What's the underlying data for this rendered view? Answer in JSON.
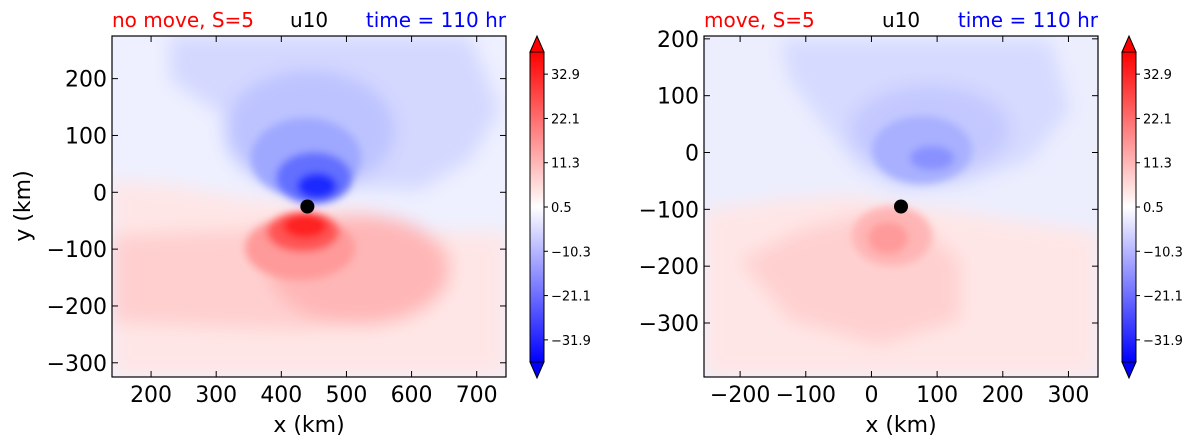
{
  "chart_data": [
    {
      "type": "heatmap",
      "variable": "u10",
      "title_left": "no move, S=5",
      "title_center": "u10",
      "title_right": "time = 110 hr",
      "title_left_color": "#ff0000",
      "title_right_color": "#0000ff",
      "xlabel": "x (km)",
      "ylabel": "y (km)",
      "xlim": [
        140,
        745
      ],
      "ylim": [
        -325,
        275
      ],
      "xticks": [
        200,
        300,
        400,
        500,
        600,
        700
      ],
      "xtick_labels": [
        "200",
        "300",
        "400",
        "500",
        "600",
        "700"
      ],
      "yticks": [
        200,
        100,
        0,
        -100,
        -200,
        -300
      ],
      "ytick_labels": [
        "200",
        "100",
        "0",
        "−100",
        "−200",
        "−300"
      ],
      "center_marker": {
        "x": 440,
        "y": -25
      },
      "features": [
        {
          "sign": "positive",
          "x": 440,
          "y": -60,
          "value": 38
        },
        {
          "sign": "negative",
          "x": 455,
          "y": 5,
          "value": -34
        }
      ],
      "colorbar": {
        "ticks": [
          32.9,
          22.1,
          11.3,
          0.5,
          -10.3,
          -21.1,
          -31.9
        ],
        "tick_labels": [
          "32.9",
          "22.1",
          "11.3",
          "0.5",
          "−10.3",
          "−21.1",
          "−31.9"
        ],
        "extend": "both",
        "cmap": "bwr"
      }
    },
    {
      "type": "heatmap",
      "variable": "u10",
      "title_left": "move, S=5",
      "title_center": "u10",
      "title_right": "time = 110 hr",
      "title_left_color": "#ff0000",
      "title_right_color": "#0000ff",
      "xlabel": "x (km)",
      "ylabel": "",
      "xlim": [
        -255,
        345
      ],
      "ylim": [
        -395,
        205
      ],
      "xticks": [
        -200,
        -100,
        0,
        100,
        200,
        300
      ],
      "xtick_labels": [
        "−200",
        "−100",
        "0",
        "100",
        "200",
        "300"
      ],
      "yticks": [
        200,
        100,
        0,
        -100,
        -200,
        -300
      ],
      "ytick_labels": [
        "200",
        "100",
        "0",
        "−100",
        "−200",
        "−300"
      ],
      "center_marker": {
        "x": 45,
        "y": -95
      },
      "features": [
        {
          "sign": "positive",
          "x": 40,
          "y": -145,
          "value": 20
        },
        {
          "sign": "negative",
          "x": 95,
          "y": -20,
          "value": -18
        }
      ],
      "colorbar": {
        "ticks": [
          32.9,
          22.1,
          11.3,
          0.5,
          -10.3,
          -21.1,
          -31.9
        ],
        "tick_labels": [
          "32.9",
          "22.1",
          "11.3",
          "0.5",
          "−10.3",
          "−21.1",
          "−31.9"
        ],
        "extend": "both",
        "cmap": "bwr"
      }
    }
  ]
}
